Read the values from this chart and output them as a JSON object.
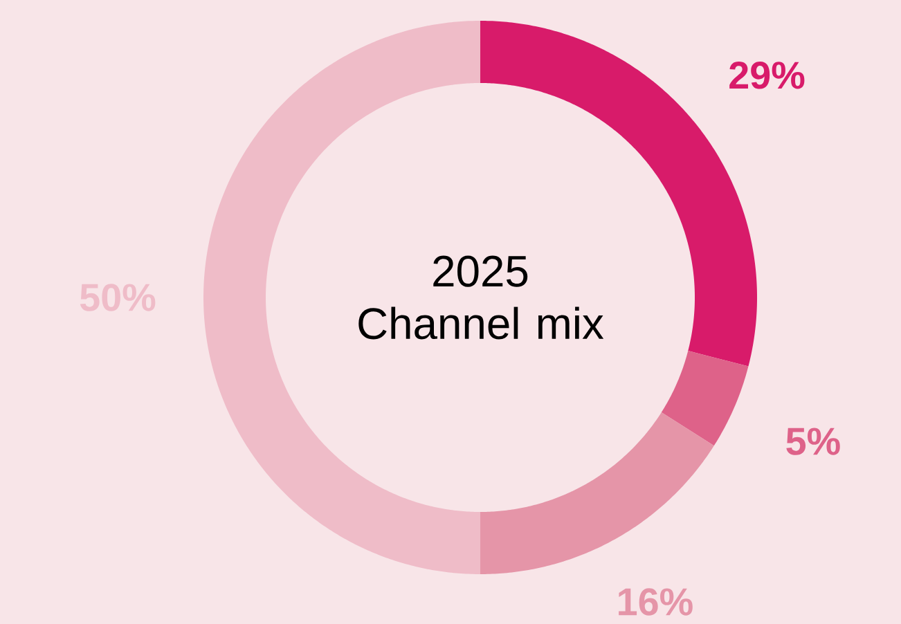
{
  "chart_data": {
    "type": "donut",
    "title": "2025 Channel mix",
    "categories": [
      null,
      null,
      null,
      null
    ],
    "values": [
      29,
      5,
      16,
      50
    ],
    "colors": [
      "#d81b6a",
      "#de6289",
      "#e595a8",
      "#efbcc8"
    ],
    "value_labels": [
      "29%",
      "5%",
      "16%",
      "50%"
    ]
  }
}
